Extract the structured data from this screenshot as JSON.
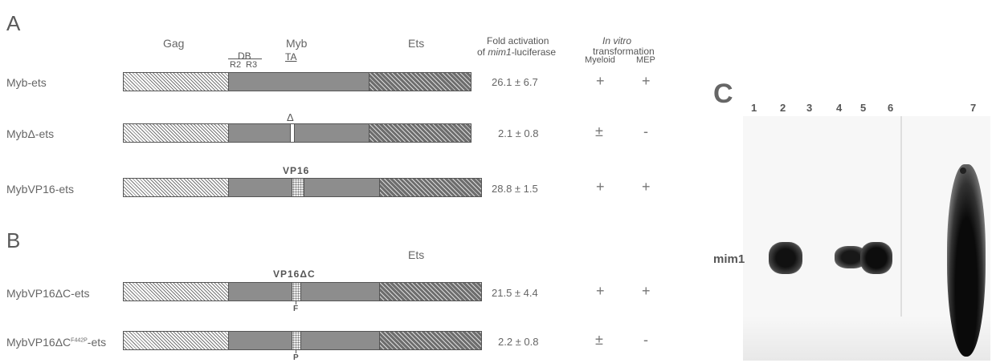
{
  "panels": {
    "a": "A",
    "b": "B",
    "c": "C"
  },
  "header": {
    "gag": "Gag",
    "myb": "Myb",
    "ets": "Ets",
    "ets_b": "Ets",
    "db": "DB",
    "r2": "R2",
    "r3": "R3",
    "ta": "TA",
    "fold_line1": "Fold activation",
    "fold_line2_prefix": "of ",
    "fold_line2_gene": "mim1",
    "fold_line2_suffix": "-luciferase",
    "invitro_line1": "In vitro",
    "invitro_line2": "transformation",
    "myeloid": "Myeloid",
    "mep": "MEP"
  },
  "rows": [
    {
      "label": "Myb-ets",
      "fold": "26.1 ± 6.7",
      "myeloid": "+",
      "mep": "+"
    },
    {
      "label": "MybΔ-ets",
      "insert_label": "Δ",
      "fold": "2.1 ± 0.8",
      "myeloid": "±",
      "mep": "-"
    },
    {
      "label": "MybVP16-ets",
      "insert_label": "VP16",
      "fold": "28.8 ± 1.5",
      "myeloid": "+",
      "mep": "+"
    },
    {
      "label": "MybVP16ΔC-ets",
      "insert_label": "VP16ΔC",
      "residue": "F",
      "fold": "21.5 ± 4.4",
      "myeloid": "+",
      "mep": "+"
    },
    {
      "label_prefix": "MybVP16ΔC",
      "label_sup": "F442P",
      "label_suffix": "-ets",
      "residue": "P",
      "fold": "2.2 ± 0.8",
      "myeloid": "±",
      "mep": "-"
    }
  ],
  "gel": {
    "lanes": [
      "1",
      "2",
      "3",
      "4",
      "5",
      "6",
      "7"
    ],
    "band_label": "mim1"
  }
}
